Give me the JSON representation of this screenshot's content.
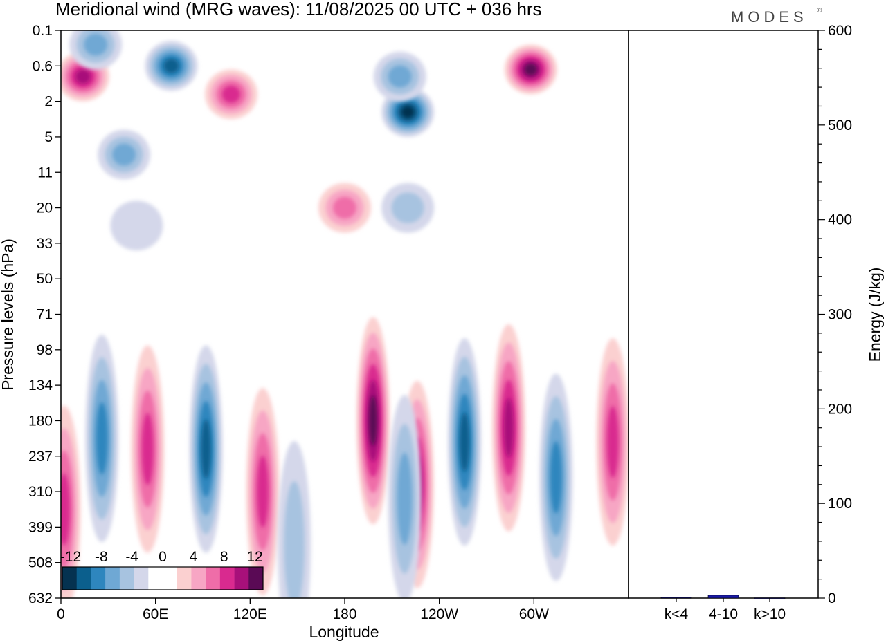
{
  "header": {
    "title": "Meridional wind (MRG waves):  11/08/2025  00 UTC  + 036 hrs",
    "brand": "MODES",
    "brand_mark": "®"
  },
  "chart_data": [
    {
      "type": "heatmap",
      "title": "Meridional wind (MRG waves):  11/08/2025  00 UTC  + 036 hrs",
      "xlabel": "Longitude",
      "ylabel": "Pressure levels (hPa)",
      "x_ticks": [
        {
          "lon": 0,
          "label": "0"
        },
        {
          "lon": 60,
          "label": "60E"
        },
        {
          "lon": 120,
          "label": "120E"
        },
        {
          "lon": 180,
          "label": "180"
        },
        {
          "lon": 240,
          "label": "120W"
        },
        {
          "lon": 300,
          "label": "60W"
        }
      ],
      "xlim": [
        0,
        360
      ],
      "y_levels": [
        "0.1",
        "0.6",
        "2",
        "5",
        "11",
        "20",
        "33",
        "50",
        "71",
        "98",
        "134",
        "180",
        "237",
        "310",
        "399",
        "508",
        "632"
      ],
      "colorbar": {
        "labels": [
          "-12",
          "-8",
          "-4",
          "0",
          "4",
          "8",
          "12"
        ],
        "colors": [
          "#053250",
          "#0b5f8d",
          "#2e86be",
          "#6fa8d4",
          "#a7c3e0",
          "#d4d7ea",
          "#ffffff",
          "#ffffff",
          "#fbd0d0",
          "#f7a6c4",
          "#ef6da8",
          "#d92a8f",
          "#a8107a",
          "#5a0a55"
        ]
      },
      "features": [
        {
          "lon": 14,
          "level": 1.3,
          "value": 11
        },
        {
          "lon": 70,
          "level": 1.0,
          "value": -11
        },
        {
          "lon": 108,
          "level": 1.8,
          "value": 9
        },
        {
          "lon": 220,
          "level": 2.3,
          "value": -13
        },
        {
          "lon": 215,
          "level": 1.3,
          "value": -7
        },
        {
          "lon": 298,
          "level": 1.1,
          "value": 14
        },
        {
          "lon": 22,
          "level": 0.4,
          "value": -7
        },
        {
          "lon": 40,
          "level": 3.5,
          "value": -6
        },
        {
          "lon": 180,
          "level": 5.0,
          "value": 7
        },
        {
          "lon": 48,
          "level": 5.5,
          "value": -3
        },
        {
          "lon": 220,
          "level": 5.0,
          "value": -4
        },
        {
          "lon": 26,
          "level": 11.5,
          "value": -9
        },
        {
          "lon": 55,
          "level": 11.8,
          "value": 8
        },
        {
          "lon": 92,
          "level": 11.8,
          "value": -12
        },
        {
          "lon": 128,
          "level": 13.0,
          "value": 8
        },
        {
          "lon": 198,
          "level": 11.0,
          "value": 13
        },
        {
          "lon": 226,
          "level": 12.8,
          "value": 12
        },
        {
          "lon": 256,
          "level": 11.6,
          "value": -12
        },
        {
          "lon": 284,
          "level": 11.2,
          "value": 12
        },
        {
          "lon": 314,
          "level": 12.6,
          "value": -9
        },
        {
          "lon": 350,
          "level": 11.6,
          "value": 9
        },
        {
          "lon": 2,
          "level": 13.5,
          "value": 8
        },
        {
          "lon": 148,
          "level": 14.5,
          "value": -5
        },
        {
          "lon": 218,
          "level": 13.2,
          "value": -6
        }
      ]
    },
    {
      "type": "bar",
      "categories": [
        "k<4",
        "4-10",
        "k>10"
      ],
      "values": [
        0.5,
        3,
        0.3
      ],
      "ylabel": "Energy (J/kg)",
      "ylim": [
        0,
        600
      ],
      "y_ticks": [
        "0",
        "100",
        "200",
        "300",
        "400",
        "500",
        "600"
      ],
      "bar_color": "#1a1aa6"
    }
  ]
}
